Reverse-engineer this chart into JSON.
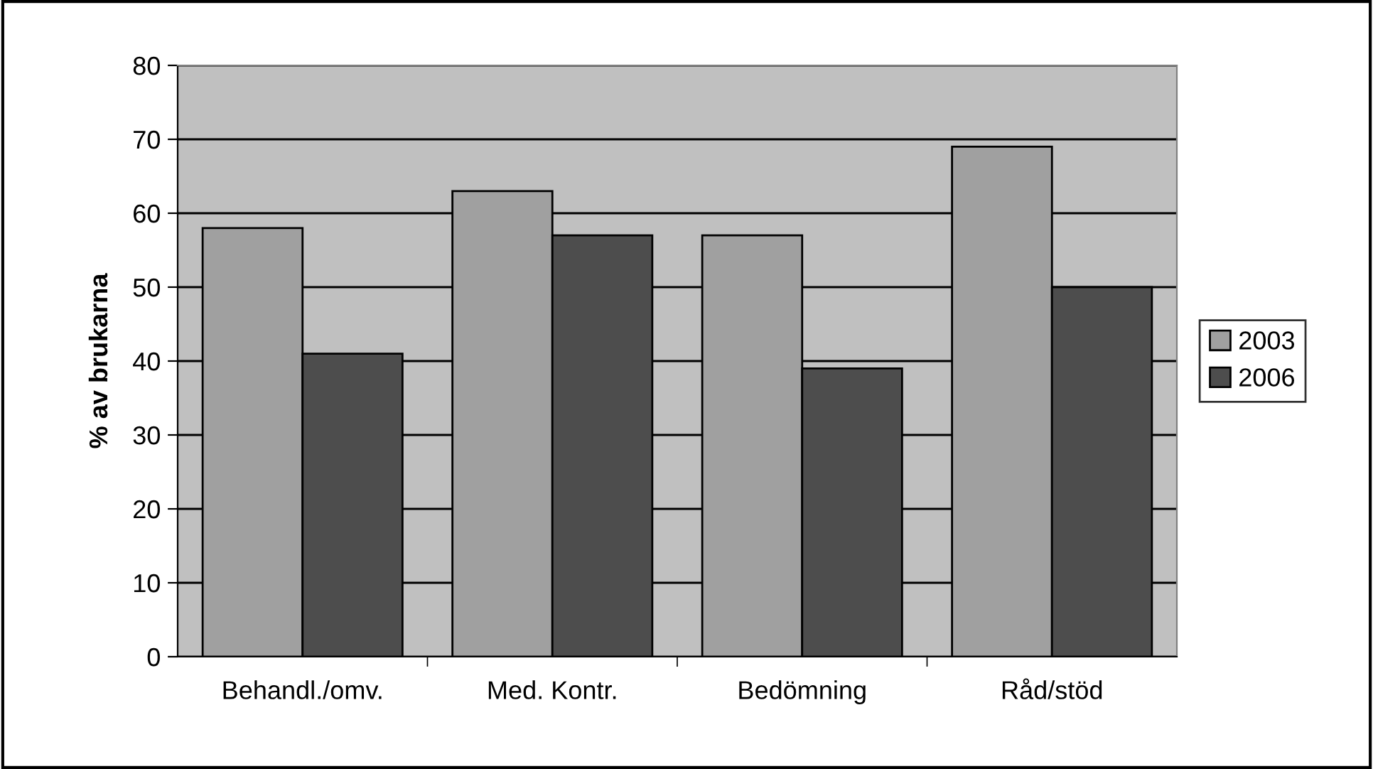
{
  "chart_data": {
    "type": "bar",
    "ylabel": "% av brukarna",
    "categories": [
      "Behandl./omv.",
      "Med. Kontr.",
      "Bedömning",
      "Råd/stöd"
    ],
    "series": [
      {
        "name": "2003",
        "color": "#a0a0a0",
        "values": [
          58,
          63,
          57,
          69
        ]
      },
      {
        "name": "2006",
        "color": "#4d4d4d",
        "values": [
          41,
          57,
          39,
          50
        ]
      }
    ],
    "ylim": [
      0,
      80
    ],
    "yticks": [
      0,
      10,
      20,
      30,
      40,
      50,
      60,
      70,
      80
    ],
    "grid": "y",
    "legend": "right"
  }
}
